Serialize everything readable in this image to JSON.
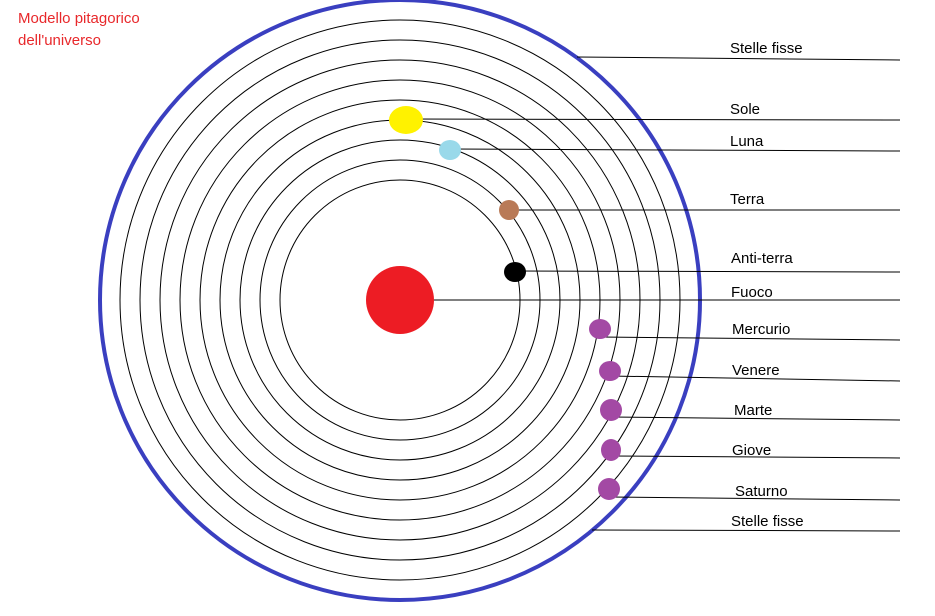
{
  "title": {
    "line1": "Modello pitagorico",
    "line2": "dell'universo"
  },
  "colors": {
    "title": "#e8282b",
    "outer_sphere": "#3a3fc0",
    "fire": "#ed1c24",
    "sun": "#fff200",
    "moon": "#99d9ea",
    "earth": "#b97a57",
    "counter_earth": "#000000",
    "planets": "#a349a4"
  },
  "labels": {
    "stelle_fisse_top": "Stelle fisse",
    "sole": "Sole",
    "luna": "Luna",
    "terra": "Terra",
    "anti_terra": "Anti-terra",
    "fuoco": "Fuoco",
    "mercurio": "Mercurio",
    "venere": "Venere",
    "marte": "Marte",
    "giove": "Giove",
    "saturno": "Saturno",
    "stelle_fisse_bottom": "Stelle fisse"
  }
}
